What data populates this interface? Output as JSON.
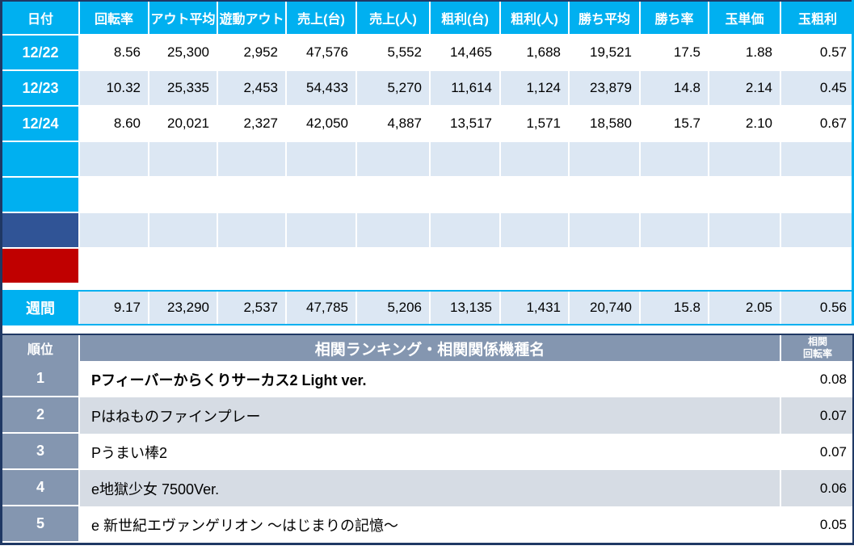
{
  "colors": {
    "header_cyan": "#00B0F0",
    "row_alt_blue": "#DCE7F3",
    "row_navy": "#305496",
    "row_red": "#C00000",
    "rank_header_gray_blue": "#8496B0",
    "rank_alt_gray": "#D6DCE4",
    "border_navy": "#1F3864"
  },
  "daily_table": {
    "columns": [
      "日付",
      "回転率",
      "アウト平均",
      "遊動アウト",
      "売上(台)",
      "売上(人)",
      "粗利(台)",
      "粗利(人)",
      "勝ち平均",
      "勝ち率",
      "玉単価",
      "玉粗利"
    ],
    "rows": [
      {
        "label": "12/22",
        "label_style": "cyan",
        "zebra": "white",
        "values": [
          "8.56",
          "25,300",
          "2,952",
          "47,576",
          "5,552",
          "14,465",
          "1,688",
          "19,521",
          "17.5",
          "1.88",
          "0.57"
        ]
      },
      {
        "label": "12/23",
        "label_style": "cyan",
        "zebra": "alt",
        "values": [
          "10.32",
          "25,335",
          "2,453",
          "54,433",
          "5,270",
          "11,614",
          "1,124",
          "23,879",
          "14.8",
          "2.14",
          "0.45"
        ]
      },
      {
        "label": "12/24",
        "label_style": "cyan",
        "zebra": "white",
        "values": [
          "8.60",
          "20,021",
          "2,327",
          "42,050",
          "4,887",
          "13,517",
          "1,571",
          "18,580",
          "15.7",
          "2.10",
          "0.67"
        ]
      },
      {
        "label": "",
        "label_style": "cyan",
        "zebra": "alt",
        "values": [
          "",
          "",
          "",
          "",
          "",
          "",
          "",
          "",
          "",
          "",
          ""
        ]
      },
      {
        "label": "",
        "label_style": "cyan",
        "zebra": "white",
        "values": [
          "",
          "",
          "",
          "",
          "",
          "",
          "",
          "",
          "",
          "",
          ""
        ]
      },
      {
        "label": "",
        "label_style": "navy",
        "zebra": "alt",
        "values": [
          "",
          "",
          "",
          "",
          "",
          "",
          "",
          "",
          "",
          "",
          ""
        ]
      },
      {
        "label": "",
        "label_style": "red",
        "zebra": "white",
        "values": [
          "",
          "",
          "",
          "",
          "",
          "",
          "",
          "",
          "",
          "",
          ""
        ]
      }
    ],
    "summary_row": {
      "label": "週間",
      "values": [
        "9.17",
        "23,290",
        "2,537",
        "47,785",
        "5,206",
        "13,135",
        "1,431",
        "20,740",
        "15.8",
        "2.05",
        "0.56"
      ]
    }
  },
  "ranking_table": {
    "rank_header": "順位",
    "title": "相関ランキング・相関関係機種名",
    "value_header_line1": "相関",
    "value_header_line2": "回転率",
    "rows": [
      {
        "rank": "1",
        "name": "Pフィーバーからくりサーカス2 Light ver.",
        "value": "0.08",
        "bold": true,
        "zebra": "white"
      },
      {
        "rank": "2",
        "name": "Pはねものファインプレー",
        "value": "0.07",
        "bold": false,
        "zebra": "alt"
      },
      {
        "rank": "3",
        "name": "Pうまい棒2",
        "value": "0.07",
        "bold": false,
        "zebra": "white"
      },
      {
        "rank": "4",
        "name": "e地獄少女 7500Ver.",
        "value": "0.06",
        "bold": false,
        "zebra": "alt"
      },
      {
        "rank": "5",
        "name": "e 新世紀エヴァンゲリオン ～はじまりの記憶～",
        "value": "0.05",
        "bold": false,
        "zebra": "white"
      }
    ]
  }
}
